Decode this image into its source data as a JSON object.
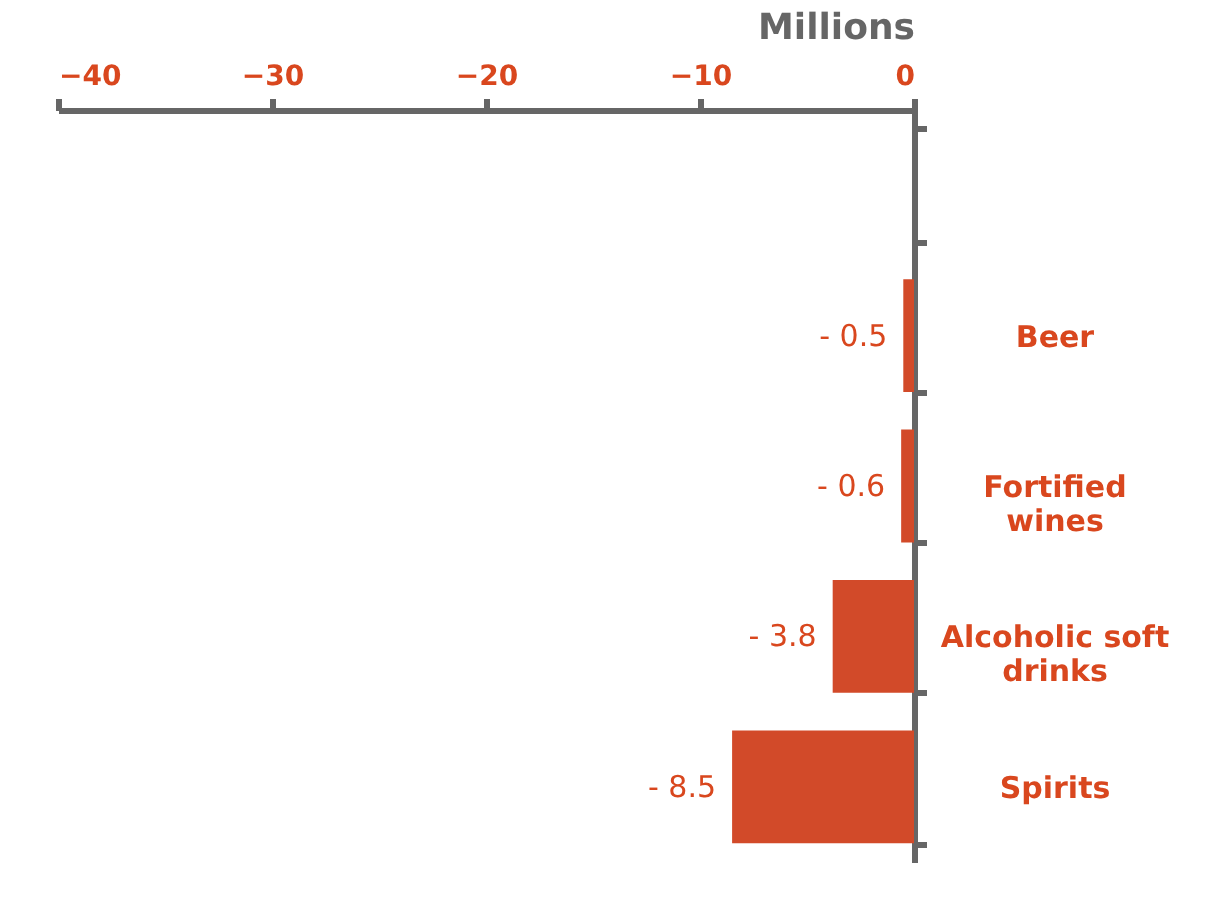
{
  "chart_data": {
    "type": "bar",
    "orientation": "horizontal",
    "xlabel": "Millions",
    "categories": [
      null,
      "Beer",
      "Fortified wines",
      "Alcoholic soft drinks",
      "Spirits"
    ],
    "values": [
      null,
      -0.5,
      -0.6,
      -3.8,
      -8.5
    ],
    "value_labels": [
      null,
      "- 0.5",
      "- 0.6",
      "- 3.8",
      "- 8.5"
    ],
    "color": "#d24a29",
    "xlim": [
      -40,
      0
    ],
    "xticks": [
      -40,
      -30,
      -20,
      -10,
      0
    ],
    "grid": false
  }
}
